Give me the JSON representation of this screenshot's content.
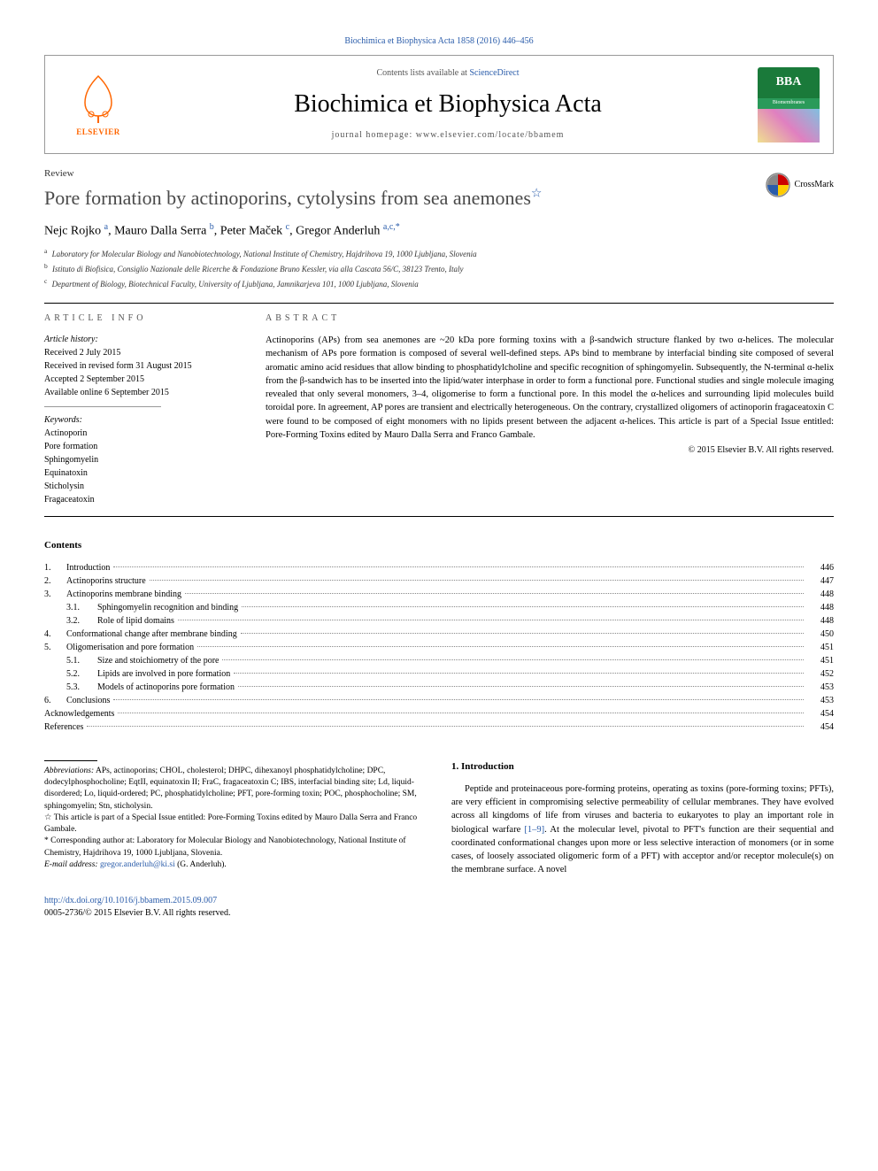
{
  "top_link": "Biochimica et Biophysica Acta 1858 (2016) 446–456",
  "header": {
    "contents_text": "Contents lists available at ",
    "contents_link": "ScienceDirect",
    "journal_title": "Biochimica et Biophysica Acta",
    "homepage": "journal homepage: www.elsevier.com/locate/bbamem",
    "elsevier": "ELSEVIER",
    "bba": "BBA",
    "bba_sub": "Biomembranes"
  },
  "article": {
    "type": "Review",
    "title": "Pore formation by actinoporins, cytolysins from sea anemones",
    "star": "☆",
    "crossmark": "CrossMark",
    "authors_html": "Nejc Rojko <sup>a</sup>, Mauro Dalla Serra <sup>b</sup>, Peter Maček <sup>c</sup>, Gregor Anderluh <sup>a,c,*</sup>",
    "affiliations": [
      {
        "sup": "a",
        "text": "Laboratory for Molecular Biology and Nanobiotechnology, National Institute of Chemistry, Hajdrihova 19, 1000 Ljubljana, Slovenia"
      },
      {
        "sup": "b",
        "text": "Istituto di Biofisica, Consiglio Nazionale delle Ricerche & Fondazione Bruno Kessler, via alla Cascata 56/C, 38123 Trento, Italy"
      },
      {
        "sup": "c",
        "text": "Department of Biology, Biotechnical Faculty, University of Ljubljana, Jamnikarjeva 101, 1000 Ljubljana, Slovenia"
      }
    ]
  },
  "info": {
    "head": "article info",
    "history_label": "Article history:",
    "lines": [
      "Received 2 July 2015",
      "Received in revised form 31 August 2015",
      "Accepted 2 September 2015",
      "Available online 6 September 2015"
    ],
    "keywords_label": "Keywords:",
    "keywords": [
      "Actinoporin",
      "Pore formation",
      "Sphingomyelin",
      "Equinatoxin",
      "Sticholysin",
      "Fragaceatoxin"
    ]
  },
  "abstract": {
    "head": "abstract",
    "text": "Actinoporins (APs) from sea anemones are ~20 kDa pore forming toxins with a β-sandwich structure flanked by two α-helices. The molecular mechanism of APs pore formation is composed of several well-defined steps. APs bind to membrane by interfacial binding site composed of several aromatic amino acid residues that allow binding to phosphatidylcholine and specific recognition of sphingomyelin. Subsequently, the N-terminal α-helix from the β-sandwich has to be inserted into the lipid/water interphase in order to form a functional pore. Functional studies and single molecule imaging revealed that only several monomers, 3–4, oligomerise to form a functional pore. In this model the α-helices and surrounding lipid molecules build toroidal pore. In agreement, AP pores are transient and electrically heterogeneous. On the contrary, crystallized oligomers of actinoporin fragaceatoxin C were found to be composed of eight monomers with no lipids present between the adjacent α-helices. This article is part of a Special Issue entitled: Pore-Forming Toxins edited by Mauro Dalla Serra and Franco Gambale.",
    "copyright": "© 2015 Elsevier B.V. All rights reserved."
  },
  "toc": {
    "title": "Contents",
    "items": [
      {
        "num": "1.",
        "label": "Introduction",
        "page": "446"
      },
      {
        "num": "2.",
        "label": "Actinoporins structure",
        "page": "447"
      },
      {
        "num": "3.",
        "label": "Actinoporins membrane binding",
        "page": "448"
      },
      {
        "sub": "3.1.",
        "label": "Sphingomyelin recognition and binding",
        "page": "448"
      },
      {
        "sub": "3.2.",
        "label": "Role of lipid domains",
        "page": "448"
      },
      {
        "num": "4.",
        "label": "Conformational change after membrane binding",
        "page": "450"
      },
      {
        "num": "5.",
        "label": "Oligomerisation and pore formation",
        "page": "451"
      },
      {
        "sub": "5.1.",
        "label": "Size and stoichiometry of the pore",
        "page": "451"
      },
      {
        "sub": "5.2.",
        "label": "Lipids are involved in pore formation",
        "page": "452"
      },
      {
        "sub": "5.3.",
        "label": "Models of actinoporins pore formation",
        "page": "453"
      },
      {
        "num": "6.",
        "label": "Conclusions",
        "page": "453"
      },
      {
        "nonum": true,
        "label": "Acknowledgements",
        "page": "454"
      },
      {
        "nonum": true,
        "label": "References",
        "page": "454"
      }
    ]
  },
  "footnotes": {
    "abbrev_label": "Abbreviations:",
    "abbrev": "APs, actinoporins; CHOL, cholesterol; DHPC, dihexanoyl phosphatidylcholine; DPC, dodecylphosphocholine; EqtII, equinatoxin II; FraC, fragaceatoxin C; IBS, interfacial binding site; Ld, liquid-disordered; Lo, liquid-ordered; PC, phosphatidylcholine; PFT, pore-forming toxin; POC, phosphocholine; SM, sphingomyelin; Stn, sticholysin.",
    "star_note": "☆ This article is part of a Special Issue entitled: Pore-Forming Toxins edited by Mauro Dalla Serra and Franco Gambale.",
    "corr": "* Corresponding author at: Laboratory for Molecular Biology and Nanobiotechnology, National Institute of Chemistry, Hajdrihova 19, 1000 Ljubljana, Slovenia.",
    "email_label": "E-mail address:",
    "email": "gregor.anderluh@ki.si",
    "email_who": "(G. Anderluh)."
  },
  "intro": {
    "head": "1. Introduction",
    "text_pre": "Peptide and proteinaceous pore-forming proteins, operating as toxins (pore-forming toxins; PFTs), are very efficient in compromising selective permeability of cellular membranes. They have evolved across all kingdoms of life from viruses and bacteria to eukaryotes to play an important role in biological warfare ",
    "ref": "[1–9]",
    "text_post": ". At the molecular level, pivotal to PFT's function are their sequential and coordinated conformational changes upon more or less selective interaction of monomers (or in some cases, of loosely associated oligomeric form of a PFT) with acceptor and/or receptor molecule(s) on the membrane surface. A novel"
  },
  "footer": {
    "doi": "http://dx.doi.org/10.1016/j.bbamem.2015.09.007",
    "issn": "0005-2736/© 2015 Elsevier B.V. All rights reserved."
  },
  "colors": {
    "link": "#2a5caa",
    "elsevier_orange": "#ff6600",
    "bba_green": "#1a7a3a"
  }
}
